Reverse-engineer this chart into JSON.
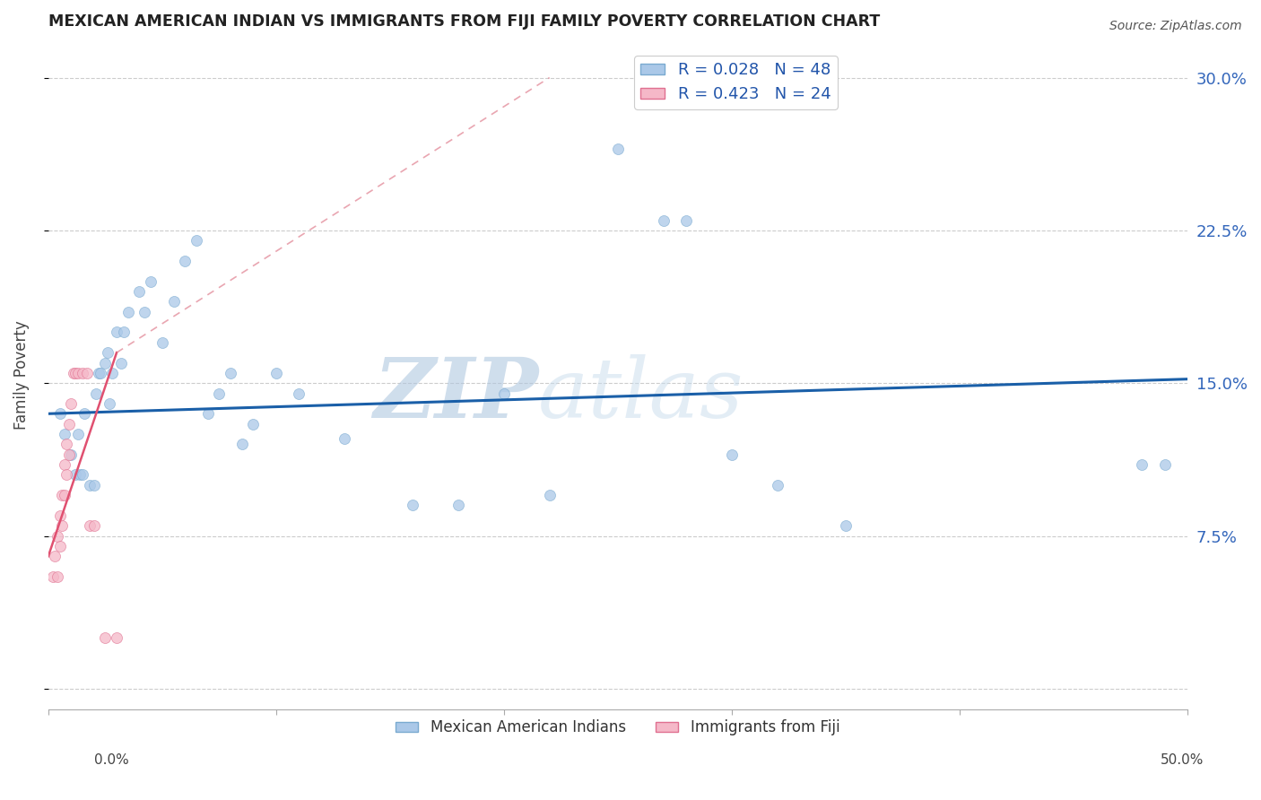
{
  "title": "MEXICAN AMERICAN INDIAN VS IMMIGRANTS FROM FIJI FAMILY POVERTY CORRELATION CHART",
  "source": "Source: ZipAtlas.com",
  "ylabel": "Family Poverty",
  "yticks": [
    0.0,
    0.075,
    0.15,
    0.225,
    0.3
  ],
  "ytick_labels": [
    "",
    "7.5%",
    "15.0%",
    "22.5%",
    "30.0%"
  ],
  "xlim": [
    0.0,
    0.5
  ],
  "ylim": [
    -0.01,
    0.318
  ],
  "watermark_zip": "ZIP",
  "watermark_atlas": "atlas",
  "legend": {
    "blue_r": "R = 0.028",
    "blue_n": "N = 48",
    "pink_r": "R = 0.423",
    "pink_n": "N = 24",
    "label_blue": "Mexican American Indians",
    "label_pink": "Immigrants from Fiji"
  },
  "blue_scatter": {
    "x": [
      0.005,
      0.007,
      0.01,
      0.012,
      0.013,
      0.014,
      0.015,
      0.016,
      0.018,
      0.02,
      0.021,
      0.022,
      0.023,
      0.025,
      0.026,
      0.027,
      0.028,
      0.03,
      0.032,
      0.033,
      0.035,
      0.04,
      0.042,
      0.045,
      0.05,
      0.055,
      0.06,
      0.065,
      0.07,
      0.075,
      0.08,
      0.085,
      0.09,
      0.1,
      0.11,
      0.13,
      0.16,
      0.18,
      0.2,
      0.22,
      0.25,
      0.27,
      0.28,
      0.3,
      0.32,
      0.35,
      0.48,
      0.49
    ],
    "y": [
      0.135,
      0.125,
      0.115,
      0.105,
      0.125,
      0.105,
      0.105,
      0.135,
      0.1,
      0.1,
      0.145,
      0.155,
      0.155,
      0.16,
      0.165,
      0.14,
      0.155,
      0.175,
      0.16,
      0.175,
      0.185,
      0.195,
      0.185,
      0.2,
      0.17,
      0.19,
      0.21,
      0.22,
      0.135,
      0.145,
      0.155,
      0.12,
      0.13,
      0.155,
      0.145,
      0.123,
      0.09,
      0.09,
      0.145,
      0.095,
      0.265,
      0.23,
      0.23,
      0.115,
      0.1,
      0.08,
      0.11,
      0.11
    ],
    "color": "#aac8e8",
    "edge_color": "#7aaad0",
    "size": 75,
    "alpha": 0.75
  },
  "pink_scatter": {
    "x": [
      0.002,
      0.003,
      0.004,
      0.004,
      0.005,
      0.005,
      0.006,
      0.006,
      0.007,
      0.007,
      0.008,
      0.008,
      0.009,
      0.009,
      0.01,
      0.011,
      0.012,
      0.013,
      0.015,
      0.017,
      0.018,
      0.02,
      0.025,
      0.03
    ],
    "y": [
      0.055,
      0.065,
      0.075,
      0.055,
      0.085,
      0.07,
      0.08,
      0.095,
      0.11,
      0.095,
      0.105,
      0.12,
      0.115,
      0.13,
      0.14,
      0.155,
      0.155,
      0.155,
      0.155,
      0.155,
      0.08,
      0.08,
      0.025,
      0.025
    ],
    "color": "#f5b8c8",
    "edge_color": "#e07090",
    "size": 75,
    "alpha": 0.75
  },
  "blue_trend": {
    "x_start": 0.0,
    "x_end": 0.5,
    "y_start": 0.135,
    "y_end": 0.152,
    "color": "#1a5fa8",
    "linewidth": 2.2
  },
  "pink_trend_solid": {
    "x_start": 0.0,
    "x_end": 0.03,
    "y_start": 0.065,
    "y_end": 0.165,
    "color": "#e05070",
    "linewidth": 1.8
  },
  "pink_trend_dashed": {
    "x_start": 0.03,
    "x_end": 0.22,
    "y_start": 0.165,
    "y_end": 0.3,
    "color": "#e08090",
    "linewidth": 1.2
  }
}
